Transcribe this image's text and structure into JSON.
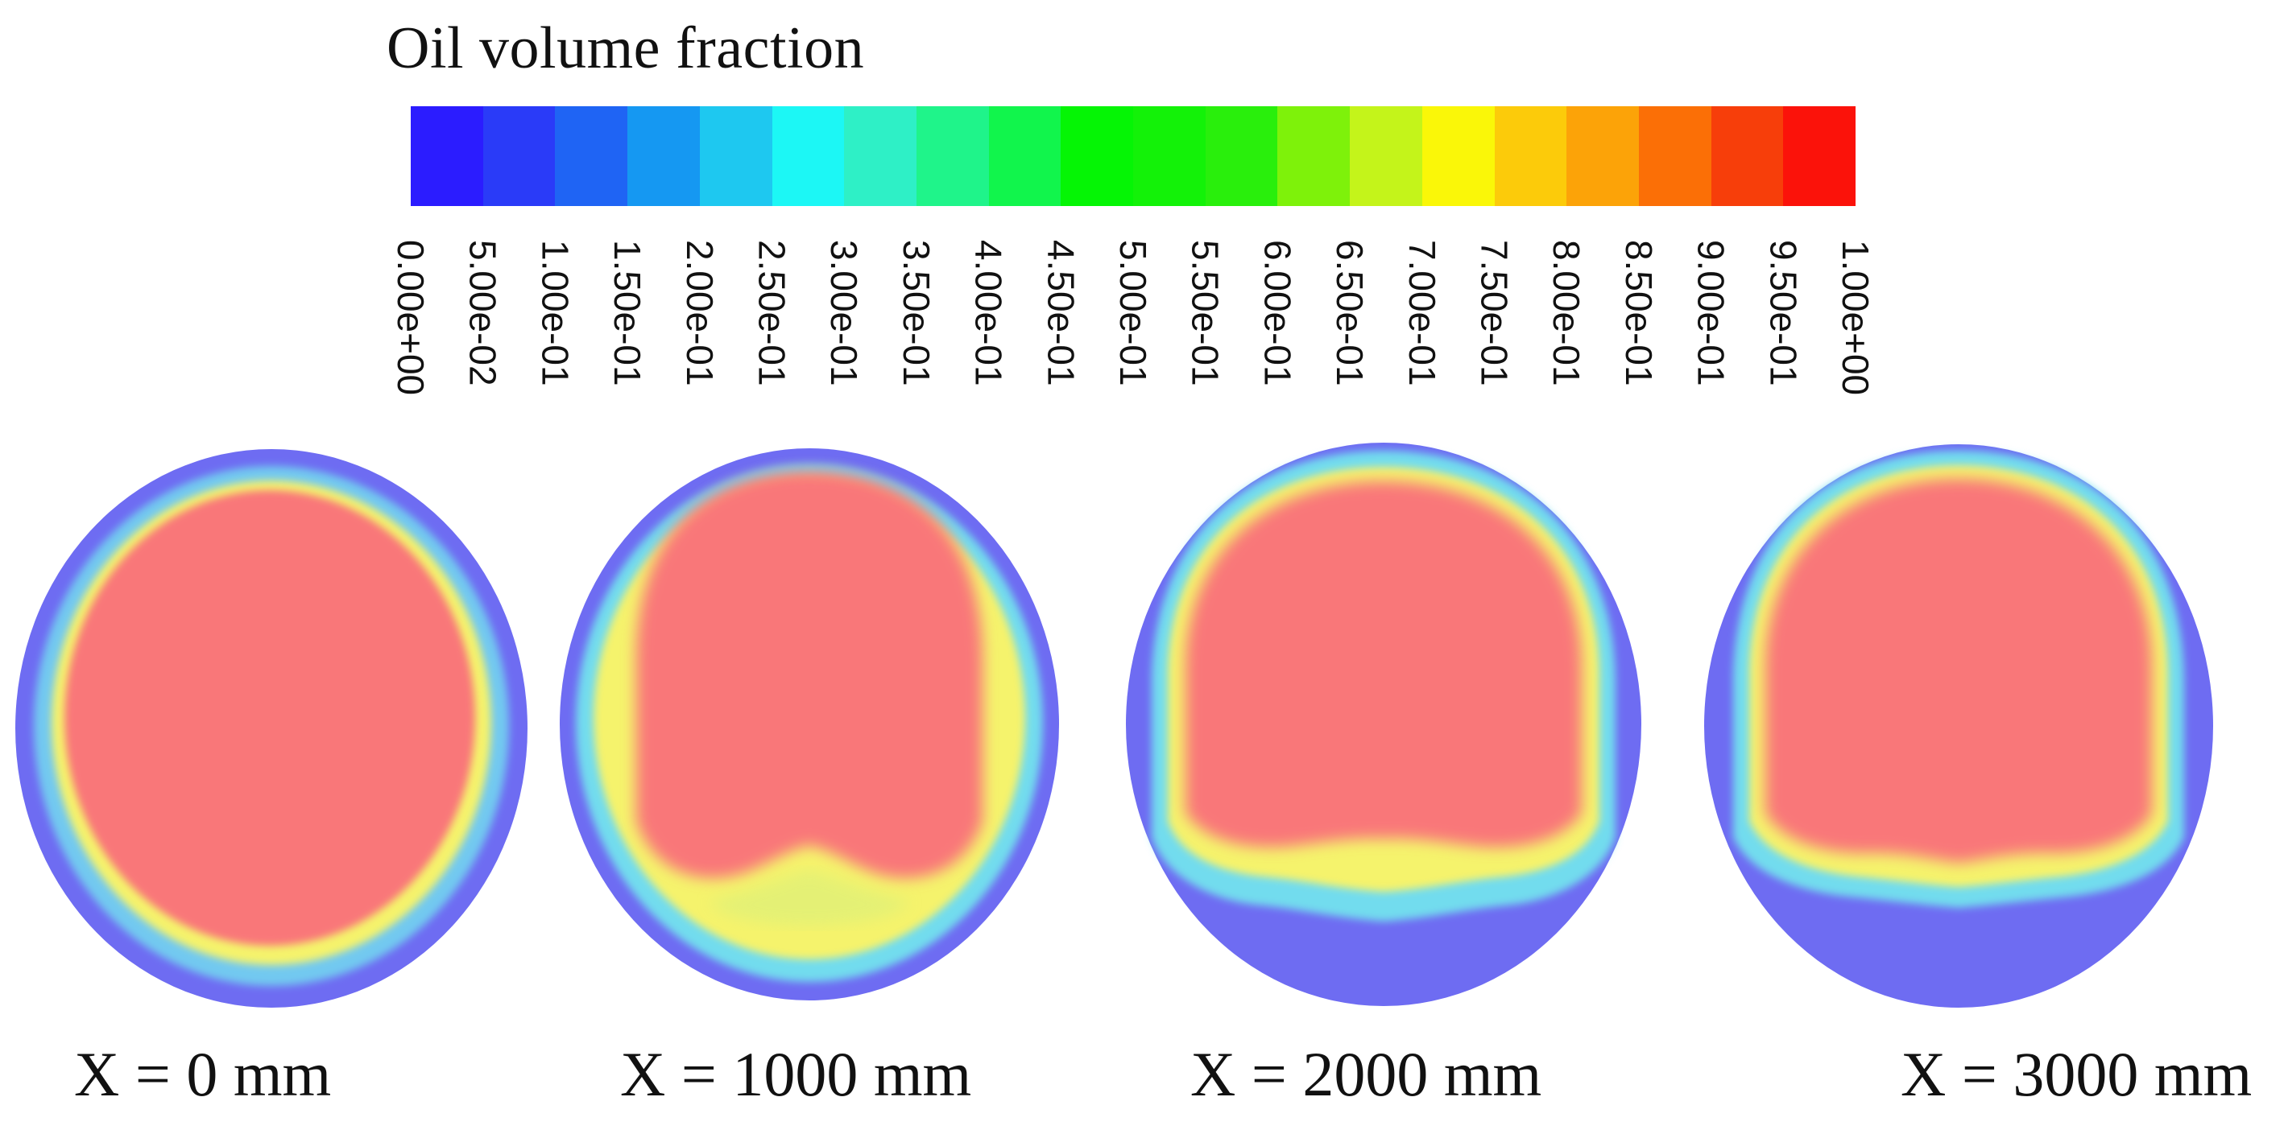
{
  "legend": {
    "title": "Oil volume fraction",
    "ticks": [
      "0.00e+00",
      "5.00e-02",
      "1.00e-01",
      "1.50e-01",
      "2.00e-01",
      "2.50e-01",
      "3.00e-01",
      "3.50e-01",
      "4.00e-01",
      "4.50e-01",
      "5.00e-01",
      "5.50e-01",
      "6.00e-01",
      "6.50e-01",
      "7.00e-01",
      "7.50e-01",
      "8.00e-01",
      "8.50e-01",
      "9.00e-01",
      "9.50e-01",
      "1.00e+00"
    ],
    "colors": [
      "#2b1cff",
      "#2a3bf8",
      "#1f64f4",
      "#1598f2",
      "#1ec8f0",
      "#1cf7f5",
      "#2ef0c6",
      "#1ff48a",
      "#11f54c",
      "#05f505",
      "#13f208",
      "#29ef0c",
      "#7ef20a",
      "#c4f41a",
      "#faf708",
      "#fccb0a",
      "#fca308",
      "#fb6f06",
      "#f73e0a",
      "#fb120a"
    ]
  },
  "sections": [
    {
      "caption": "X = 0 mm"
    },
    {
      "caption": "X = 1000 mm"
    },
    {
      "caption": "X = 2000 mm"
    },
    {
      "caption": "X = 3000 mm"
    }
  ],
  "colors": {
    "outer_blue": "#6e6cf2",
    "cyan": "#6ef2ee",
    "yellow": "#f7f36a",
    "core_red": "#f97779"
  }
}
